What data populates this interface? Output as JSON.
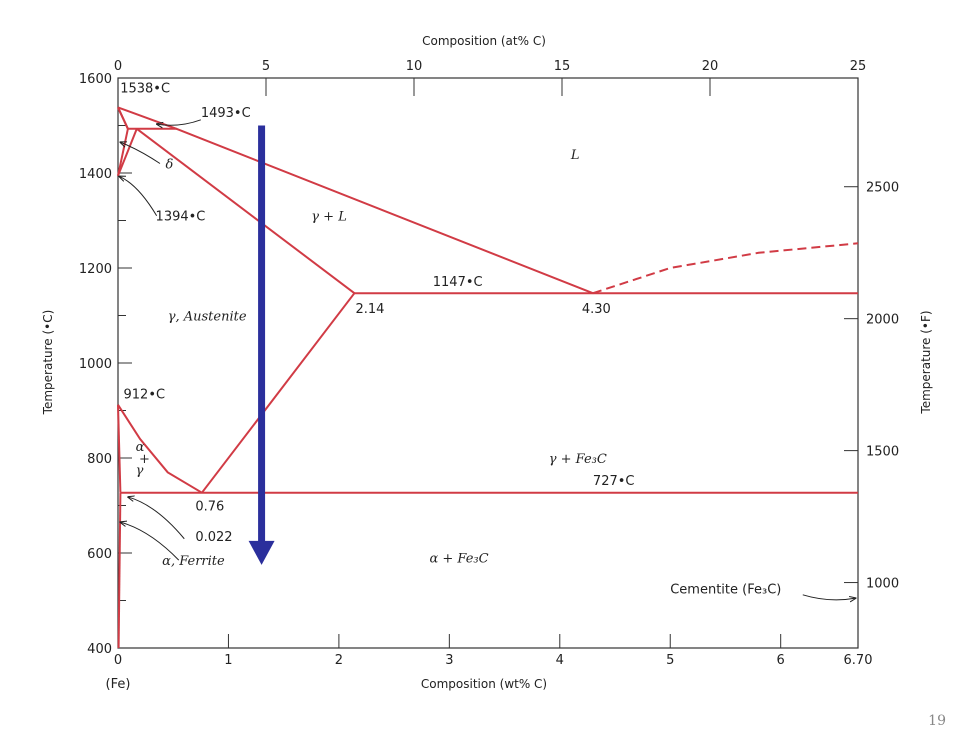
{
  "page_number": "19",
  "chart_data": {
    "type": "line",
    "title": "",
    "xlabel": "Composition (wt% C)",
    "x2label": "Composition (at% C)",
    "ylabel": "Temperature (•C)",
    "y2label": "Temperature (•F)",
    "xlim": [
      0,
      6.7
    ],
    "ylim": [
      400,
      1600
    ],
    "x2lim": [
      0,
      25
    ],
    "y2lim_F": [
      752,
      2912
    ],
    "x_ticks": [
      {
        "v": 0,
        "label": "0"
      },
      {
        "v": 1,
        "label": "1"
      },
      {
        "v": 2,
        "label": "2"
      },
      {
        "v": 3,
        "label": "3"
      },
      {
        "v": 4,
        "label": "4"
      },
      {
        "v": 5,
        "label": "5"
      },
      {
        "v": 6,
        "label": "6"
      },
      {
        "v": 6.7,
        "label": "6.70"
      }
    ],
    "x_sublabel": "(Fe)",
    "x2_ticks": [
      {
        "v": 0,
        "label": "0"
      },
      {
        "v": 5,
        "label": "5"
      },
      {
        "v": 10,
        "label": "10"
      },
      {
        "v": 15,
        "label": "15"
      },
      {
        "v": 20,
        "label": "20"
      },
      {
        "v": 25,
        "label": "25"
      }
    ],
    "y_ticks": [
      {
        "v": 400,
        "label": "400"
      },
      {
        "v": 600,
        "label": "600"
      },
      {
        "v": 800,
        "label": "800"
      },
      {
        "v": 1000,
        "label": "1000"
      },
      {
        "v": 1200,
        "label": "1200"
      },
      {
        "v": 1400,
        "label": "1400"
      },
      {
        "v": 1600,
        "label": "1600"
      }
    ],
    "y_minor_ticks": [
      500,
      700,
      900,
      1100,
      1300,
      1500
    ],
    "y2_ticks": [
      {
        "v": 1000,
        "label": "1000"
      },
      {
        "v": 1500,
        "label": "1500"
      },
      {
        "v": 2000,
        "label": "2000"
      },
      {
        "v": 2500,
        "label": "2500"
      }
    ],
    "phase_lines": [
      {
        "name": "liquidus-l-to-delta",
        "points": [
          [
            0,
            1538
          ],
          [
            0.09,
            1493
          ]
        ]
      },
      {
        "name": "delta-solidus",
        "points": [
          [
            0,
            1538
          ],
          [
            0.09,
            1493
          ]
        ]
      },
      {
        "name": "peritectic-line",
        "points": [
          [
            0.09,
            1493
          ],
          [
            0.53,
            1493
          ]
        ]
      },
      {
        "name": "delta-gamma-upper",
        "points": [
          [
            0.09,
            1493
          ],
          [
            0,
            1394
          ]
        ]
      },
      {
        "name": "delta-gamma-lower",
        "points": [
          [
            0.17,
            1493
          ],
          [
            0,
            1394
          ]
        ]
      },
      {
        "name": "liquidus-upper",
        "points": [
          [
            0,
            1538
          ],
          [
            0.53,
            1493
          ],
          [
            4.3,
            1147
          ]
        ]
      },
      {
        "name": "solidus-austenite",
        "points": [
          [
            0.17,
            1493
          ],
          [
            2.14,
            1147
          ]
        ]
      },
      {
        "name": "eutectic-line",
        "points": [
          [
            2.14,
            1147
          ],
          [
            6.7,
            1147
          ]
        ]
      },
      {
        "name": "acm-line",
        "points": [
          [
            2.14,
            1147
          ],
          [
            0.76,
            727
          ]
        ]
      },
      {
        "name": "a3-line",
        "points": [
          [
            0,
            912
          ],
          [
            0.2,
            840
          ],
          [
            0.45,
            770
          ],
          [
            0.76,
            727
          ]
        ]
      },
      {
        "name": "alpha-gamma-boundary",
        "points": [
          [
            0,
            912
          ],
          [
            0.022,
            727
          ]
        ]
      },
      {
        "name": "eutectoid-line",
        "points": [
          [
            0.022,
            727
          ],
          [
            6.7,
            727
          ]
        ]
      },
      {
        "name": "ferrite-solvus",
        "points": [
          [
            0.022,
            727
          ],
          [
            0.005,
            400
          ]
        ]
      }
    ],
    "dashed_lines": [
      {
        "name": "cementite-liquidus",
        "points": [
          [
            4.3,
            1147
          ],
          [
            5.0,
            1200
          ],
          [
            5.8,
            1232
          ],
          [
            6.7,
            1252
          ]
        ]
      }
    ],
    "cooling_arrow": {
      "x": 1.3,
      "from": 1500,
      "to": 575,
      "color": "#2b2f9c"
    },
    "line_color": "#d13b45",
    "annotations": [
      {
        "text": "1538•C",
        "x": 0.02,
        "y": 1570
      },
      {
        "text": "1493•C",
        "x": 0.75,
        "y": 1518
      },
      {
        "text": "1394•C",
        "x": 0.34,
        "y": 1300
      },
      {
        "text": "1147•C",
        "x": 2.85,
        "y": 1162
      },
      {
        "text": "2.14",
        "x": 2.15,
        "y": 1105
      },
      {
        "text": "4.30",
        "x": 4.2,
        "y": 1105
      },
      {
        "text": "912•C",
        "x": 0.05,
        "y": 925
      },
      {
        "text": "727•C",
        "x": 4.3,
        "y": 743
      },
      {
        "text": "0.76",
        "x": 0.7,
        "y": 690
      },
      {
        "text": "0.022",
        "x": 0.7,
        "y": 625
      },
      {
        "text": "δ",
        "x": 0.43,
        "y": 1410,
        "phase": true
      },
      {
        "text": "L",
        "x": 4.1,
        "y": 1430,
        "phase": true
      },
      {
        "text": "γ + L",
        "x": 1.75,
        "y": 1300,
        "phase": true
      },
      {
        "text": "γ, Austenite",
        "x": 0.45,
        "y": 1090,
        "phase": true
      },
      {
        "text": "γ + Fe₃C",
        "x": 3.9,
        "y": 790,
        "phase": true
      },
      {
        "text": "α",
        "x": 0.16,
        "y": 815,
        "phase": true
      },
      {
        "text": "+",
        "x": 0.19,
        "y": 790,
        "phase": true
      },
      {
        "text": "γ",
        "x": 0.16,
        "y": 765,
        "phase": true
      },
      {
        "text": "α, Ferrite",
        "x": 0.4,
        "y": 575,
        "phase": true
      },
      {
        "text": "α + Fe₃C",
        "x": 2.82,
        "y": 580,
        "phase": true
      },
      {
        "text": "Cementite (Fe₃C)",
        "x": 5.0,
        "y": 515
      }
    ]
  }
}
